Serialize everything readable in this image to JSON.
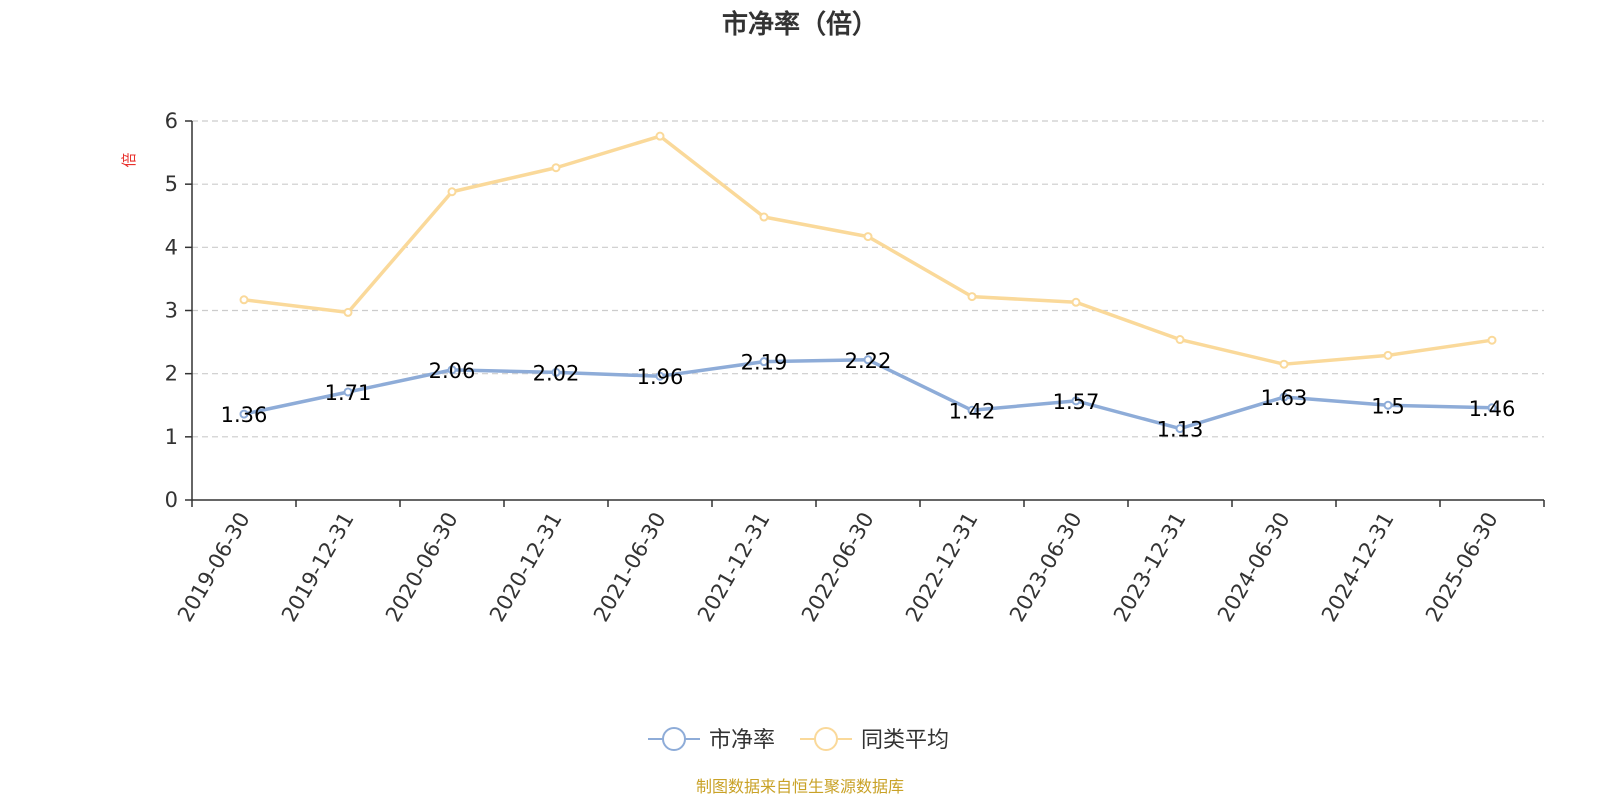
{
  "chart_data": {
    "type": "line",
    "title": "市净率（倍）",
    "ylabel": "倍",
    "ylim": [
      0,
      6
    ],
    "yticks": [
      0,
      1,
      2,
      3,
      4,
      5,
      6
    ],
    "categories": [
      "2019-06-30",
      "2019-12-31",
      "2020-06-30",
      "2020-12-31",
      "2021-06-30",
      "2021-12-31",
      "2022-06-30",
      "2022-12-31",
      "2023-06-30",
      "2023-12-31",
      "2024-06-30",
      "2024-12-31",
      "2025-06-30"
    ],
    "series": [
      {
        "name": "市净率",
        "color": "#8eacd8",
        "values": [
          1.36,
          1.71,
          2.06,
          2.02,
          1.96,
          2.19,
          2.22,
          1.42,
          1.57,
          1.13,
          1.63,
          1.5,
          1.46
        ],
        "labels": [
          "1.36",
          "1.71",
          "2.06",
          "2.02",
          "1.96",
          "2.19",
          "2.22",
          "1.42",
          "1.57",
          "1.13",
          "1.63",
          "1.5",
          "1.46"
        ]
      },
      {
        "name": "同类平均",
        "color": "#fad99a",
        "values": [
          3.17,
          2.97,
          4.88,
          5.26,
          5.76,
          4.48,
          4.17,
          3.22,
          3.13,
          2.54,
          2.15,
          2.29,
          2.53
        ]
      }
    ],
    "grid": true,
    "legend_position": "bottom-center"
  },
  "source_text": "制图数据来自恒生聚源数据库",
  "colors": {
    "axis": "#333333",
    "grid": "#cccccc",
    "ylabel": "#e8312d",
    "source": "#c9a227"
  }
}
